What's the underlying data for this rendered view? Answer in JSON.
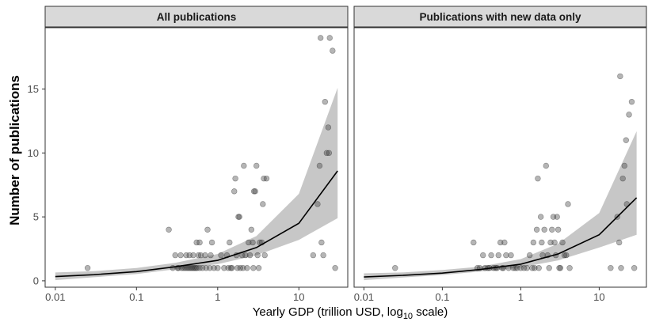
{
  "chart_data": {
    "type": "scatter",
    "ylabel": "Number of publications",
    "xlabel": "Yearly GDP (trillion USD, log",
    "xlabel_sub": "10",
    "xlabel_end": " scale)",
    "x_scale": "log10",
    "xlim": [
      0.0075,
      40
    ],
    "ylim": [
      -0.5,
      19.8
    ],
    "x_ticks": [
      0.01,
      0.1,
      1,
      10
    ],
    "x_tick_labels": [
      "0.01",
      "0.1",
      "1",
      "10"
    ],
    "y_ticks": [
      0,
      5,
      10,
      15
    ],
    "y_tick_labels": [
      "0",
      "5",
      "10",
      "15"
    ],
    "panels": [
      {
        "title": "All publications",
        "points": [
          [
            0.025,
            1
          ],
          [
            0.25,
            4
          ],
          [
            0.28,
            1
          ],
          [
            0.3,
            2
          ],
          [
            0.32,
            1
          ],
          [
            0.33,
            1
          ],
          [
            0.35,
            2
          ],
          [
            0.36,
            1
          ],
          [
            0.38,
            1
          ],
          [
            0.4,
            1
          ],
          [
            0.41,
            2
          ],
          [
            0.42,
            1
          ],
          [
            0.44,
            1
          ],
          [
            0.45,
            2
          ],
          [
            0.46,
            1
          ],
          [
            0.48,
            1
          ],
          [
            0.5,
            1
          ],
          [
            0.5,
            2
          ],
          [
            0.52,
            1
          ],
          [
            0.54,
            1
          ],
          [
            0.55,
            3
          ],
          [
            0.56,
            1
          ],
          [
            0.58,
            2
          ],
          [
            0.6,
            1
          ],
          [
            0.6,
            3
          ],
          [
            0.62,
            2
          ],
          [
            0.65,
            1
          ],
          [
            0.7,
            2
          ],
          [
            0.72,
            1
          ],
          [
            0.75,
            4
          ],
          [
            0.8,
            1
          ],
          [
            0.82,
            2
          ],
          [
            0.85,
            3
          ],
          [
            0.9,
            1
          ],
          [
            1.0,
            1
          ],
          [
            1.1,
            2
          ],
          [
            1.2,
            1
          ],
          [
            1.3,
            2
          ],
          [
            1.35,
            1
          ],
          [
            1.4,
            3
          ],
          [
            1.45,
            1
          ],
          [
            1.5,
            1
          ],
          [
            1.6,
            7
          ],
          [
            1.65,
            8
          ],
          [
            1.7,
            2
          ],
          [
            1.75,
            1
          ],
          [
            1.8,
            5
          ],
          [
            1.85,
            5
          ],
          [
            1.9,
            1
          ],
          [
            2.0,
            2
          ],
          [
            2.05,
            1
          ],
          [
            2.1,
            9
          ],
          [
            2.2,
            2
          ],
          [
            2.3,
            1
          ],
          [
            2.4,
            3
          ],
          [
            2.5,
            2
          ],
          [
            2.6,
            4
          ],
          [
            2.7,
            3
          ],
          [
            2.75,
            1
          ],
          [
            2.8,
            7
          ],
          [
            2.9,
            7
          ],
          [
            3.0,
            9
          ],
          [
            3.1,
            2
          ],
          [
            3.2,
            1
          ],
          [
            3.3,
            3
          ],
          [
            3.5,
            3
          ],
          [
            3.6,
            6
          ],
          [
            3.7,
            8
          ],
          [
            3.8,
            2
          ],
          [
            4.0,
            8
          ],
          [
            17,
            6
          ],
          [
            18,
            9
          ],
          [
            19,
            3
          ],
          [
            20,
            2
          ],
          [
            18.5,
            19
          ],
          [
            21,
            14
          ],
          [
            22,
            10
          ],
          [
            23,
            12
          ],
          [
            23.5,
            10
          ],
          [
            24,
            19
          ],
          [
            26,
            18
          ],
          [
            28,
            1
          ],
          [
            15,
            2
          ]
        ],
        "fit": [
          [
            0.01,
            0.33
          ],
          [
            0.03,
            0.48
          ],
          [
            0.1,
            0.72
          ],
          [
            0.3,
            1.1
          ],
          [
            1,
            1.6
          ],
          [
            3,
            2.6
          ],
          [
            10,
            4.5
          ],
          [
            30,
            8.6
          ]
        ],
        "ci_low": [
          [
            0.01,
            0.05
          ],
          [
            0.03,
            0.28
          ],
          [
            0.1,
            0.53
          ],
          [
            0.3,
            0.9
          ],
          [
            1,
            1.3
          ],
          [
            3,
            2.0
          ],
          [
            10,
            3.2
          ],
          [
            30,
            4.9
          ]
        ],
        "ci_high": [
          [
            0.01,
            0.65
          ],
          [
            0.03,
            0.75
          ],
          [
            0.1,
            1.0
          ],
          [
            0.3,
            1.4
          ],
          [
            1,
            2.1
          ],
          [
            3,
            3.5
          ],
          [
            10,
            6.8
          ],
          [
            30,
            15.1
          ]
        ]
      },
      {
        "title": "Publications with new data only",
        "points": [
          [
            0.025,
            1
          ],
          [
            0.25,
            3
          ],
          [
            0.28,
            1
          ],
          [
            0.3,
            1
          ],
          [
            0.33,
            2
          ],
          [
            0.35,
            1
          ],
          [
            0.38,
            1
          ],
          [
            0.4,
            1
          ],
          [
            0.42,
            2
          ],
          [
            0.45,
            1
          ],
          [
            0.48,
            1
          ],
          [
            0.5,
            1
          ],
          [
            0.52,
            2
          ],
          [
            0.55,
            3
          ],
          [
            0.58,
            1
          ],
          [
            0.6,
            1
          ],
          [
            0.62,
            3
          ],
          [
            0.65,
            2
          ],
          [
            0.7,
            1
          ],
          [
            0.75,
            2
          ],
          [
            0.8,
            1
          ],
          [
            0.85,
            1
          ],
          [
            0.9,
            1
          ],
          [
            1.0,
            1
          ],
          [
            1.1,
            1
          ],
          [
            1.2,
            1
          ],
          [
            1.3,
            2
          ],
          [
            1.4,
            1
          ],
          [
            1.45,
            3
          ],
          [
            1.5,
            1
          ],
          [
            1.6,
            4
          ],
          [
            1.65,
            8
          ],
          [
            1.7,
            1
          ],
          [
            1.8,
            5
          ],
          [
            1.85,
            3
          ],
          [
            1.9,
            2
          ],
          [
            2.0,
            4
          ],
          [
            2.1,
            9
          ],
          [
            2.2,
            2
          ],
          [
            2.3,
            1
          ],
          [
            2.4,
            3
          ],
          [
            2.5,
            4
          ],
          [
            2.6,
            5
          ],
          [
            2.7,
            3
          ],
          [
            2.8,
            2
          ],
          [
            2.9,
            5
          ],
          [
            3.0,
            4
          ],
          [
            3.1,
            1
          ],
          [
            3.2,
            1
          ],
          [
            3.4,
            3
          ],
          [
            3.6,
            2
          ],
          [
            3.8,
            2
          ],
          [
            4.0,
            6
          ],
          [
            4.2,
            1
          ],
          [
            14,
            1
          ],
          [
            17,
            5
          ],
          [
            18,
            3
          ],
          [
            19,
            1
          ],
          [
            18.5,
            16
          ],
          [
            20,
            8
          ],
          [
            21,
            9
          ],
          [
            22,
            11
          ],
          [
            22.5,
            6
          ],
          [
            24,
            13
          ],
          [
            26,
            14
          ],
          [
            28,
            1
          ]
        ],
        "fit": [
          [
            0.01,
            0.3
          ],
          [
            0.03,
            0.42
          ],
          [
            0.1,
            0.6
          ],
          [
            0.3,
            0.88
          ],
          [
            1,
            1.3
          ],
          [
            3,
            2.1
          ],
          [
            10,
            3.6
          ],
          [
            30,
            6.5
          ]
        ],
        "ci_low": [
          [
            0.01,
            0.05
          ],
          [
            0.03,
            0.25
          ],
          [
            0.1,
            0.45
          ],
          [
            0.3,
            0.72
          ],
          [
            1,
            1.05
          ],
          [
            3,
            1.6
          ],
          [
            10,
            2.6
          ],
          [
            30,
            3.6
          ]
        ],
        "ci_high": [
          [
            0.01,
            0.58
          ],
          [
            0.03,
            0.65
          ],
          [
            0.1,
            0.85
          ],
          [
            0.3,
            1.1
          ],
          [
            1,
            1.7
          ],
          [
            3,
            2.9
          ],
          [
            10,
            5.3
          ],
          [
            30,
            11.7
          ]
        ]
      }
    ]
  }
}
